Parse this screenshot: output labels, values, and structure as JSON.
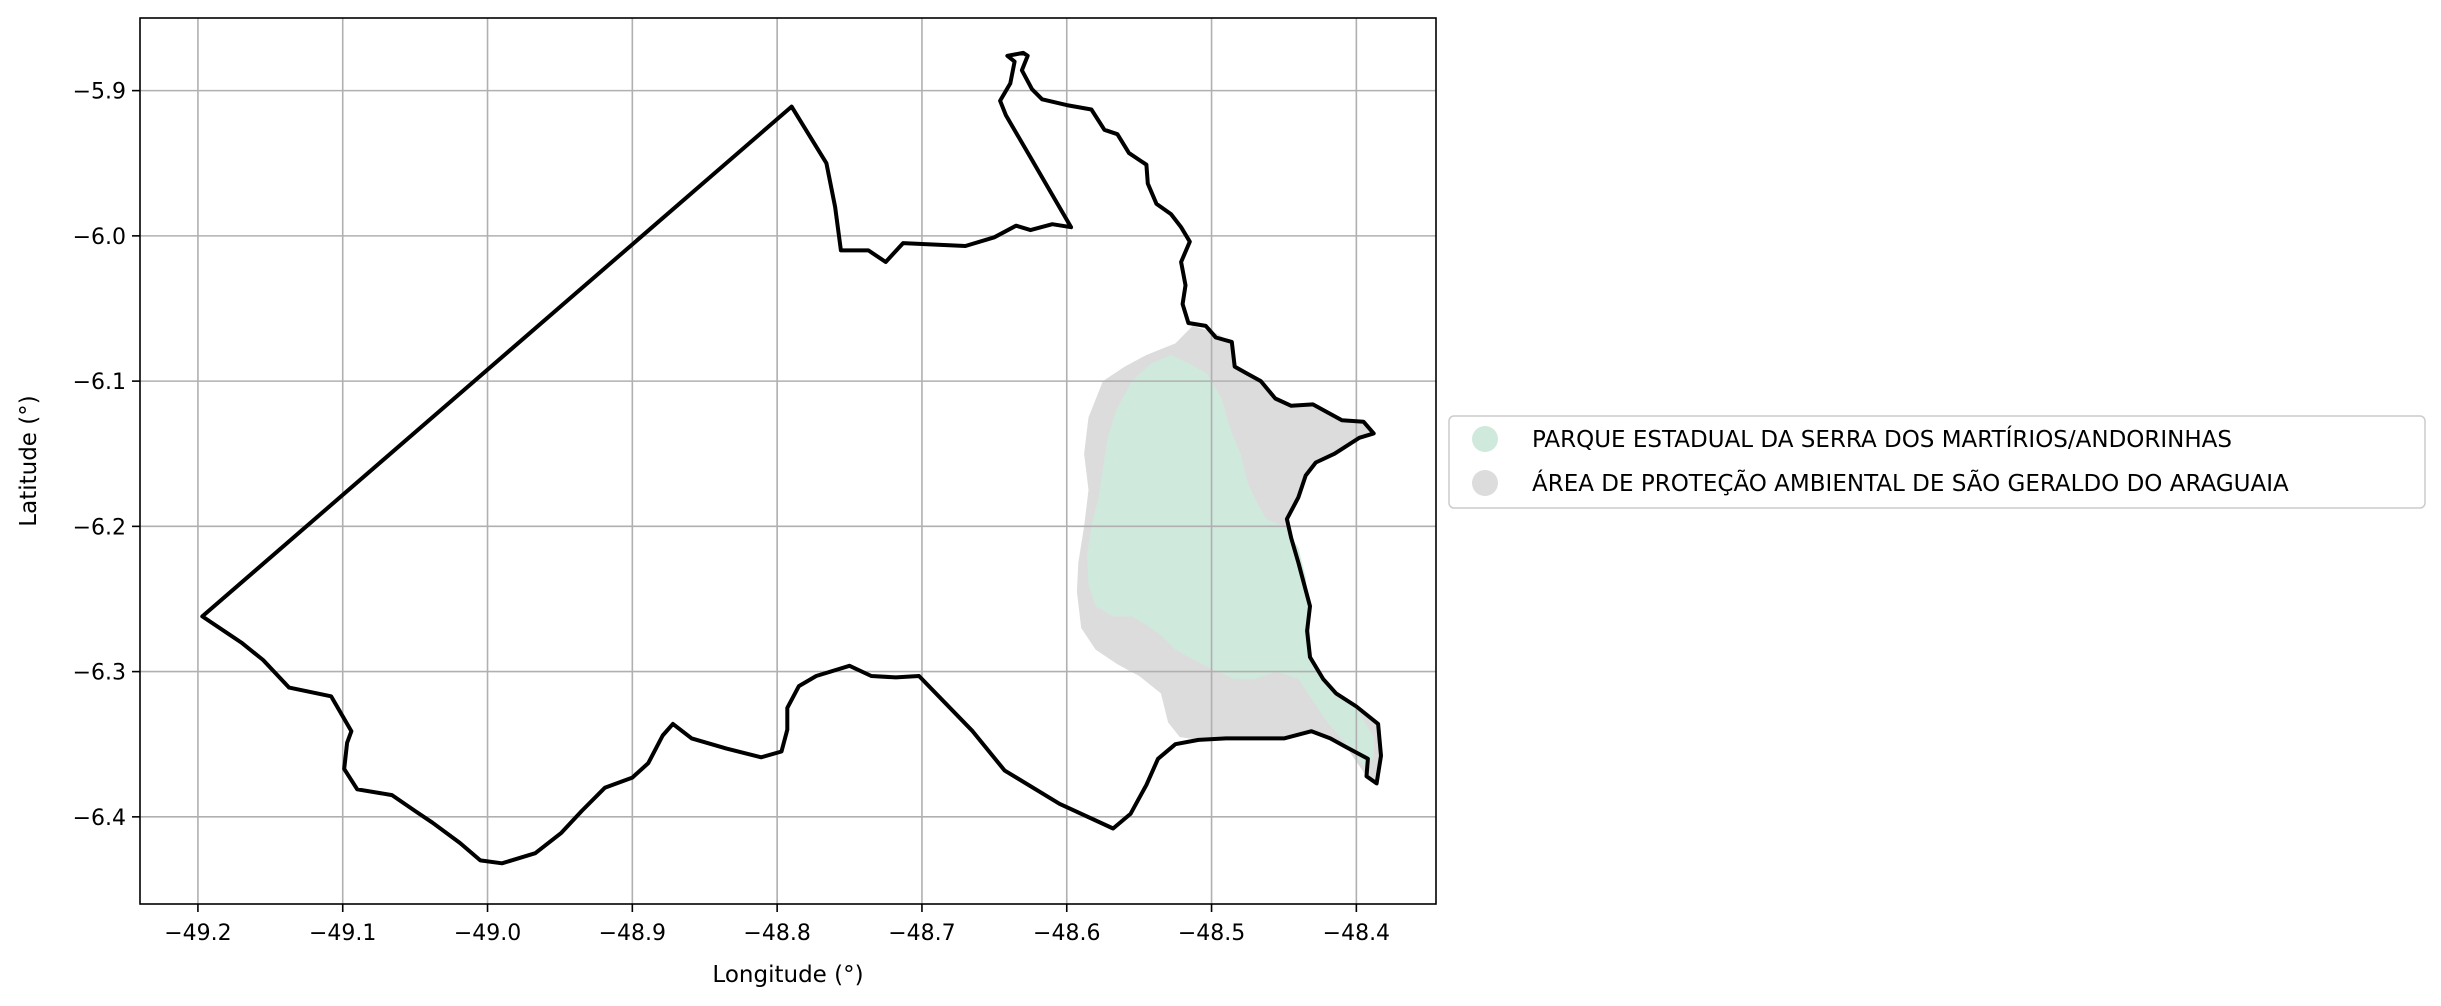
{
  "chart_data": {
    "type": "map",
    "title": "",
    "xlabel": "Longitude (°)",
    "ylabel": "Latitude (°)",
    "xlim": [
      -49.24,
      -48.345
    ],
    "ylim": [
      -6.46,
      -5.85
    ],
    "xticks": [
      -49.2,
      -49.1,
      -49.0,
      -48.9,
      -48.8,
      -48.7,
      -48.6,
      -48.5,
      -48.4
    ],
    "xtick_labels": [
      "−49.2",
      "−49.1",
      "−49.0",
      "−48.9",
      "−48.8",
      "−48.7",
      "−48.6",
      "−48.5",
      "−48.4"
    ],
    "yticks": [
      -5.9,
      -6.0,
      -6.1,
      -6.2,
      -6.3,
      -6.4
    ],
    "ytick_labels": [
      "−5.9",
      "−6.0",
      "−6.1",
      "−6.2",
      "−6.3",
      "−6.4"
    ],
    "grid": true,
    "legend_position": "right",
    "colors": {
      "boundary": "#000000",
      "apa": "#dcdcdc",
      "parque": "#cfe9dd",
      "grid": "#b0b0b0"
    },
    "legend": [
      {
        "label": "PARQUE ESTADUAL DA SERRA DOS MARTÍRIOS/ANDORINHAS",
        "color": "#cfe9dd"
      },
      {
        "label": "ÁREA DE PROTEÇÃO AMBIENTAL DE SÃO GERALDO DO ARAGUAIA",
        "color": "#dcdcdc"
      }
    ],
    "boundary": [
      [
        -49.197,
        -6.262
      ],
      [
        -48.79,
        -5.911
      ],
      [
        -48.766,
        -5.95
      ],
      [
        -48.76,
        -5.98
      ],
      [
        -48.756,
        -6.01
      ],
      [
        -48.737,
        -6.01
      ],
      [
        -48.725,
        -6.018
      ],
      [
        -48.713,
        -6.005
      ],
      [
        -48.67,
        -6.007
      ],
      [
        -48.65,
        -6.001
      ],
      [
        -48.635,
        -5.993
      ],
      [
        -48.625,
        -5.996
      ],
      [
        -48.61,
        -5.992
      ],
      [
        -48.597,
        -5.994
      ],
      [
        -48.625,
        -5.946
      ],
      [
        -48.642,
        -5.917
      ],
      [
        -48.646,
        -5.907
      ],
      [
        -48.639,
        -5.895
      ],
      [
        -48.636,
        -5.88
      ],
      [
        -48.641,
        -5.876
      ],
      [
        -48.63,
        -5.874
      ],
      [
        -48.627,
        -5.876
      ],
      [
        -48.631,
        -5.886
      ],
      [
        -48.624,
        -5.899
      ],
      [
        -48.617,
        -5.906
      ],
      [
        -48.6,
        -5.91
      ],
      [
        -48.583,
        -5.913
      ],
      [
        -48.574,
        -5.927
      ],
      [
        -48.565,
        -5.93
      ],
      [
        -48.557,
        -5.943
      ],
      [
        -48.545,
        -5.951
      ],
      [
        -48.544,
        -5.964
      ],
      [
        -48.538,
        -5.978
      ],
      [
        -48.528,
        -5.985
      ],
      [
        -48.521,
        -5.994
      ],
      [
        -48.515,
        -6.004
      ],
      [
        -48.521,
        -6.018
      ],
      [
        -48.518,
        -6.034
      ],
      [
        -48.52,
        -6.047
      ],
      [
        -48.516,
        -6.06
      ],
      [
        -48.504,
        -6.062
      ],
      [
        -48.497,
        -6.07
      ],
      [
        -48.486,
        -6.073
      ],
      [
        -48.484,
        -6.09
      ],
      [
        -48.477,
        -6.094
      ],
      [
        -48.466,
        -6.1
      ],
      [
        -48.456,
        -6.112
      ],
      [
        -48.445,
        -6.117
      ],
      [
        -48.43,
        -6.116
      ],
      [
        -48.41,
        -6.127
      ],
      [
        -48.395,
        -6.128
      ],
      [
        -48.388,
        -6.136
      ],
      [
        -48.398,
        -6.139
      ],
      [
        -48.415,
        -6.15
      ],
      [
        -48.428,
        -6.156
      ],
      [
        -48.435,
        -6.165
      ],
      [
        -48.44,
        -6.18
      ],
      [
        -48.448,
        -6.195
      ],
      [
        -48.445,
        -6.208
      ],
      [
        -48.44,
        -6.225
      ],
      [
        -48.436,
        -6.24
      ],
      [
        -48.432,
        -6.255
      ],
      [
        -48.434,
        -6.272
      ],
      [
        -48.432,
        -6.29
      ],
      [
        -48.423,
        -6.305
      ],
      [
        -48.414,
        -6.315
      ],
      [
        -48.4,
        -6.324
      ],
      [
        -48.385,
        -6.336
      ],
      [
        -48.383,
        -6.358
      ],
      [
        -48.386,
        -6.377
      ],
      [
        -48.393,
        -6.372
      ],
      [
        -48.392,
        -6.36
      ],
      [
        -48.407,
        -6.352
      ],
      [
        -48.418,
        -6.346
      ],
      [
        -48.431,
        -6.341
      ],
      [
        -48.45,
        -6.346
      ],
      [
        -48.49,
        -6.346
      ],
      [
        -48.509,
        -6.347
      ],
      [
        -48.525,
        -6.35
      ],
      [
        -48.537,
        -6.36
      ],
      [
        -48.545,
        -6.378
      ],
      [
        -48.556,
        -6.398
      ],
      [
        -48.568,
        -6.408
      ],
      [
        -48.605,
        -6.391
      ],
      [
        -48.643,
        -6.368
      ],
      [
        -48.665,
        -6.341
      ],
      [
        -48.702,
        -6.303
      ],
      [
        -48.718,
        -6.304
      ],
      [
        -48.735,
        -6.303
      ],
      [
        -48.75,
        -6.296
      ],
      [
        -48.773,
        -6.303
      ],
      [
        -48.785,
        -6.31
      ],
      [
        -48.793,
        -6.325
      ],
      [
        -48.793,
        -6.34
      ],
      [
        -48.797,
        -6.355
      ],
      [
        -48.811,
        -6.359
      ],
      [
        -48.835,
        -6.353
      ],
      [
        -48.859,
        -6.346
      ],
      [
        -48.872,
        -6.336
      ],
      [
        -48.879,
        -6.344
      ],
      [
        -48.889,
        -6.363
      ],
      [
        -48.9,
        -6.373
      ],
      [
        -48.919,
        -6.38
      ],
      [
        -48.935,
        -6.396
      ],
      [
        -48.949,
        -6.411
      ],
      [
        -48.967,
        -6.425
      ],
      [
        -48.99,
        -6.432
      ],
      [
        -49.005,
        -6.43
      ],
      [
        -49.019,
        -6.418
      ],
      [
        -49.038,
        -6.404
      ],
      [
        -49.05,
        -6.396
      ],
      [
        -49.066,
        -6.385
      ],
      [
        -49.09,
        -6.381
      ],
      [
        -49.099,
        -6.367
      ],
      [
        -49.097,
        -6.349
      ],
      [
        -49.094,
        -6.341
      ],
      [
        -49.108,
        -6.317
      ],
      [
        -49.137,
        -6.311
      ],
      [
        -49.155,
        -6.292
      ],
      [
        -49.17,
        -6.28
      ],
      [
        -49.197,
        -6.262
      ]
    ],
    "apa_area": [
      [
        -48.525,
        -6.074
      ],
      [
        -48.513,
        -6.062
      ],
      [
        -48.497,
        -6.067
      ],
      [
        -48.486,
        -6.073
      ],
      [
        -48.484,
        -6.09
      ],
      [
        -48.477,
        -6.094
      ],
      [
        -48.466,
        -6.1
      ],
      [
        -48.456,
        -6.112
      ],
      [
        -48.445,
        -6.117
      ],
      [
        -48.43,
        -6.116
      ],
      [
        -48.41,
        -6.127
      ],
      [
        -48.395,
        -6.128
      ],
      [
        -48.388,
        -6.136
      ],
      [
        -48.398,
        -6.139
      ],
      [
        -48.415,
        -6.15
      ],
      [
        -48.428,
        -6.156
      ],
      [
        -48.435,
        -6.165
      ],
      [
        -48.44,
        -6.18
      ],
      [
        -48.448,
        -6.195
      ],
      [
        -48.445,
        -6.208
      ],
      [
        -48.44,
        -6.225
      ],
      [
        -48.436,
        -6.24
      ],
      [
        -48.432,
        -6.255
      ],
      [
        -48.434,
        -6.272
      ],
      [
        -48.432,
        -6.29
      ],
      [
        -48.423,
        -6.305
      ],
      [
        -48.414,
        -6.315
      ],
      [
        -48.4,
        -6.324
      ],
      [
        -48.385,
        -6.336
      ],
      [
        -48.383,
        -6.358
      ],
      [
        -48.386,
        -6.377
      ],
      [
        -48.393,
        -6.372
      ],
      [
        -48.407,
        -6.352
      ],
      [
        -48.431,
        -6.341
      ],
      [
        -48.45,
        -6.346
      ],
      [
        -48.49,
        -6.346
      ],
      [
        -48.509,
        -6.347
      ],
      [
        -48.522,
        -6.345
      ],
      [
        -48.53,
        -6.335
      ],
      [
        -48.535,
        -6.315
      ],
      [
        -48.55,
        -6.303
      ],
      [
        -48.565,
        -6.295
      ],
      [
        -48.58,
        -6.285
      ],
      [
        -48.59,
        -6.27
      ],
      [
        -48.593,
        -6.245
      ],
      [
        -48.592,
        -6.225
      ],
      [
        -48.588,
        -6.2
      ],
      [
        -48.585,
        -6.175
      ],
      [
        -48.588,
        -6.15
      ],
      [
        -48.585,
        -6.125
      ],
      [
        -48.575,
        -6.1
      ],
      [
        -48.56,
        -6.09
      ],
      [
        -48.545,
        -6.082
      ]
    ],
    "parque_area": [
      [
        -48.528,
        -6.082
      ],
      [
        -48.515,
        -6.088
      ],
      [
        -48.503,
        -6.095
      ],
      [
        -48.493,
        -6.112
      ],
      [
        -48.488,
        -6.13
      ],
      [
        -48.48,
        -6.15
      ],
      [
        -48.475,
        -6.17
      ],
      [
        -48.468,
        -6.185
      ],
      [
        -48.462,
        -6.195
      ],
      [
        -48.45,
        -6.2
      ],
      [
        -48.44,
        -6.215
      ],
      [
        -48.435,
        -6.235
      ],
      [
        -48.433,
        -6.255
      ],
      [
        -48.432,
        -6.275
      ],
      [
        -48.43,
        -6.295
      ],
      [
        -48.42,
        -6.31
      ],
      [
        -48.4,
        -6.325
      ],
      [
        -48.388,
        -6.345
      ],
      [
        -48.388,
        -6.36
      ],
      [
        -48.395,
        -6.365
      ],
      [
        -48.405,
        -6.352
      ],
      [
        -48.42,
        -6.335
      ],
      [
        -48.43,
        -6.32
      ],
      [
        -48.44,
        -6.305
      ],
      [
        -48.455,
        -6.3
      ],
      [
        -48.47,
        -6.305
      ],
      [
        -48.485,
        -6.305
      ],
      [
        -48.5,
        -6.298
      ],
      [
        -48.512,
        -6.292
      ],
      [
        -48.525,
        -6.285
      ],
      [
        -48.535,
        -6.275
      ],
      [
        -48.545,
        -6.268
      ],
      [
        -48.555,
        -6.262
      ],
      [
        -48.568,
        -6.262
      ],
      [
        -48.58,
        -6.255
      ],
      [
        -48.585,
        -6.24
      ],
      [
        -48.586,
        -6.22
      ],
      [
        -48.583,
        -6.2
      ],
      [
        -48.578,
        -6.18
      ],
      [
        -48.575,
        -6.16
      ],
      [
        -48.572,
        -6.14
      ],
      [
        -48.566,
        -6.12
      ],
      [
        -48.555,
        -6.1
      ],
      [
        -48.542,
        -6.088
      ]
    ]
  }
}
